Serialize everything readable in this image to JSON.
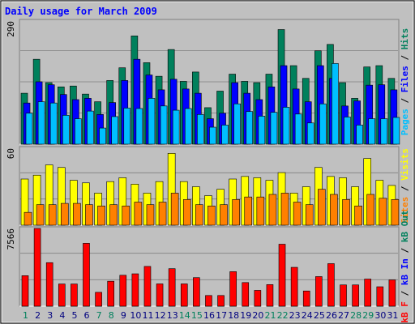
{
  "chart_data": {
    "type": "bar",
    "title": "Daily usage for March 2009",
    "categories": [
      "1",
      "2",
      "3",
      "4",
      "5",
      "6",
      "7",
      "8",
      "9",
      "10",
      "11",
      "12",
      "13",
      "14",
      "15",
      "16",
      "17",
      "18",
      "19",
      "20",
      "21",
      "22",
      "23",
      "24",
      "25",
      "26",
      "27",
      "28",
      "29",
      "30",
      "31"
    ],
    "weekend_days": [
      "1",
      "7",
      "8",
      "14",
      "15",
      "21",
      "22",
      "28",
      "29"
    ],
    "grid": true,
    "panels": [
      {
        "id": "top",
        "ylabel_max": "290",
        "ylim": [
          0,
          290
        ],
        "series": [
          {
            "name": "Hits",
            "color": "#00805c",
            "values": [
              120,
              200,
              145,
              135,
              137,
              118,
              100,
              150,
              180,
              255,
              192,
              160,
              223,
              148,
              170,
              86,
              125,
              165,
              148,
              145,
              165,
              270,
              185,
              155,
              220,
              235,
              145,
              108,
              182,
              185,
              155
            ]
          },
          {
            "name": "Files",
            "color": "#0000ff",
            "values": [
              97,
              147,
              140,
              117,
              105,
              108,
              70,
              98,
              150,
              200,
              163,
              128,
              153,
              130,
              120,
              60,
              73,
              145,
              120,
              105,
              135,
              185,
              130,
              100,
              185,
              155,
              90,
              102,
              139,
              140,
              128
            ]
          },
          {
            "name": "Pages",
            "color": "#00bfff",
            "values": [
              73,
              100,
              97,
              68,
              60,
              78,
              38,
              65,
              85,
              84,
              108,
              90,
              80,
              84,
              70,
              40,
              45,
              95,
              77,
              66,
              75,
              87,
              71,
              50,
              95,
              190,
              64,
              45,
              60,
              60,
              63
            ]
          }
        ]
      },
      {
        "id": "middle",
        "ylabel_max": "60",
        "ylim": [
          0,
          60
        ],
        "series": [
          {
            "name": "Visits",
            "color": "#ffff00",
            "values": [
              36,
              39,
              47,
              45,
              35,
              33,
              25,
              34,
              37,
              32,
              25,
              34,
              56,
              34,
              30,
              23,
              28,
              36,
              38,
              37,
              35,
              41,
              25,
              30,
              45,
              38,
              37,
              30,
              52,
              35,
              31
            ]
          },
          {
            "name": "Sites",
            "color": "#ff8000",
            "values": [
              10,
              16,
              16,
              17,
              17,
              16,
              15,
              16,
              15,
              18,
              16,
              18,
              25,
              20,
              16,
              15,
              16,
              20,
              22,
              22,
              24,
              25,
              18,
              16,
              28,
              24,
              20,
              15,
              24,
              21,
              20
            ]
          }
        ]
      },
      {
        "id": "bottom",
        "ylabel_max": "7566",
        "ylim": [
          0,
          7566
        ],
        "series": [
          {
            "name": "kB In",
            "color": "#0000ff",
            "values": [
              10,
              10,
              10,
              10,
              10,
              10,
              10,
              10,
              10,
              10,
              10,
              10,
              10,
              10,
              10,
              10,
              10,
              10,
              10,
              10,
              10,
              10,
              10,
              10,
              10,
              10,
              10,
              10,
              10,
              10,
              10
            ]
          },
          {
            "name": "kB Out",
            "color": "#00805c",
            "values": [
              0,
              0,
              0,
              0,
              0,
              0,
              0,
              0,
              0,
              0,
              0,
              0,
              0,
              0,
              0,
              0,
              0,
              0,
              0,
              0,
              0,
              0,
              0,
              0,
              0,
              0,
              0,
              0,
              0,
              0,
              0
            ]
          },
          {
            "name": "kB F",
            "color": "#ff0000",
            "values": [
              2970,
              7566,
              4237,
              2160,
              2160,
              6120,
              1350,
              2430,
              3010,
              3150,
              3870,
              2170,
              3650,
              2170,
              2780,
              1040,
              1040,
              3360,
              2300,
              1540,
              2100,
              6030,
              3780,
              1480,
              2880,
              4140,
              2070,
              2070,
              2640,
              1890,
              2560
            ]
          }
        ]
      }
    ],
    "legend": {
      "top": {
        "pages": "Pages",
        "sep1": " / ",
        "files": "Files",
        "sep2": " / ",
        "hits": "Hits"
      },
      "middle": {
        "sites": "Sites",
        "sep": " / ",
        "visits": "Visits"
      },
      "bottom": {
        "kbf": "kB F",
        "sep1": " / ",
        "kbin": "kB In",
        "sep2": " / ",
        "kbout": "kB Out"
      }
    },
    "colors": {
      "background": "#c0c0c0",
      "frame": "#ffffff",
      "title": "#0000ff",
      "weekday_label": "#00007f",
      "weekend_label": "#00805c",
      "axis_label": "#000000",
      "legend_separator": "#000000",
      "legend_hits": "#00805c",
      "legend_files": "#0000ff",
      "legend_pages": "#00bfff",
      "legend_visits": "#ffff00",
      "legend_sites": "#ff8000",
      "legend_kbf": "#ff0000",
      "legend_kbin": "#0000ff",
      "legend_kbout": "#00805c"
    }
  }
}
